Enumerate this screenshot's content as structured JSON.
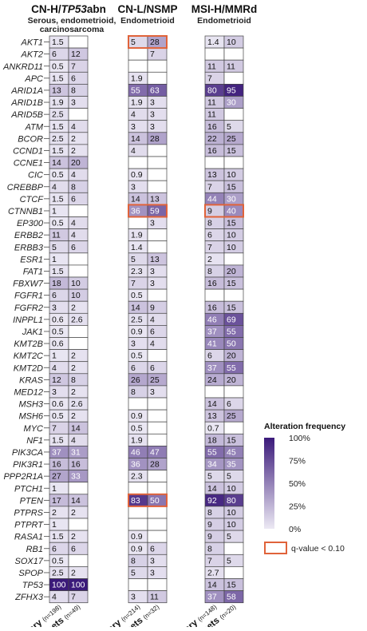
{
  "chart_data": {
    "type": "heatmap",
    "genes": [
      "AKT1",
      "AKT2",
      "ANKRD11",
      "APC",
      "ARID1A",
      "ARID1B",
      "ARID5B",
      "ATM",
      "BCOR",
      "CCND1",
      "CCNE1",
      "CIC",
      "CREBBP",
      "CTCF",
      "CTNNB1",
      "EP300",
      "ERBB2",
      "ERBB3",
      "ESR1",
      "FAT1",
      "FBXW7",
      "FGFR1",
      "FGFR2",
      "INPPL1",
      "JAK1",
      "KMT2B",
      "KMT2C",
      "KMT2D",
      "KRAS",
      "MED12",
      "MSH3",
      "MSH6",
      "MYC",
      "NF1",
      "PIK3CA",
      "PIK3R1",
      "PPP2R1A",
      "PTCH1",
      "PTEN",
      "PTPRS",
      "PTPRT",
      "RASA1",
      "RB1",
      "SOX17",
      "SPOP",
      "TP53",
      "ZFHX3"
    ],
    "italic_tp53_title": true,
    "groups": [
      {
        "title_prefix": "CN-H/",
        "title_italic": "TP53",
        "title_suffix": "abn",
        "subtitle": "Serous, endometrioid, carcinosarcoma",
        "columns": [
          {
            "label": "Primary",
            "n": "(n=198)"
          },
          {
            "label": "Distant mets",
            "n": "(n=49)"
          }
        ],
        "values": [
          [
            "1.5",
            ""
          ],
          [
            "6",
            "12"
          ],
          [
            "0.5",
            "7"
          ],
          [
            "1.5",
            "6"
          ],
          [
            "13",
            "8"
          ],
          [
            "1.9",
            "3"
          ],
          [
            "2.5",
            ""
          ],
          [
            "1.5",
            "4"
          ],
          [
            "2.5",
            "2"
          ],
          [
            "1.5",
            "2"
          ],
          [
            "14",
            "20"
          ],
          [
            "0.5",
            "4"
          ],
          [
            "4",
            "8"
          ],
          [
            "1.5",
            "6"
          ],
          [
            "1",
            ""
          ],
          [
            "0.5",
            "4"
          ],
          [
            "11",
            "4"
          ],
          [
            "5",
            "6"
          ],
          [
            "1",
            ""
          ],
          [
            "1.5",
            ""
          ],
          [
            "18",
            "10"
          ],
          [
            "6",
            "10"
          ],
          [
            "3",
            "2"
          ],
          [
            "0.6",
            "2.6"
          ],
          [
            "0.5",
            ""
          ],
          [
            "0.6",
            ""
          ],
          [
            "1",
            "2"
          ],
          [
            "4",
            "2"
          ],
          [
            "12",
            "8"
          ],
          [
            "3",
            "2"
          ],
          [
            "0.6",
            "2.6"
          ],
          [
            "0.5",
            "2"
          ],
          [
            "7",
            "14"
          ],
          [
            "1.5",
            "4"
          ],
          [
            "37",
            "31"
          ],
          [
            "16",
            "16"
          ],
          [
            "27",
            "33"
          ],
          [
            "1",
            ""
          ],
          [
            "17",
            "14"
          ],
          [
            "2",
            "2"
          ],
          [
            "1",
            ""
          ],
          [
            "1.5",
            "2"
          ],
          [
            "6",
            "6"
          ],
          [
            "0.5",
            ""
          ],
          [
            "2.5",
            "2"
          ],
          [
            "100",
            "100"
          ],
          [
            "4",
            "7"
          ]
        ],
        "highlight": []
      },
      {
        "title_prefix": "CN-L/NSMP",
        "title_italic": "",
        "title_suffix": "",
        "subtitle": "Endometrioid",
        "columns": [
          {
            "label": "Primary",
            "n": "(n=214)"
          },
          {
            "label": "Distant mets",
            "n": "(n=32)"
          }
        ],
        "values": [
          [
            "5",
            "28"
          ],
          [
            "",
            "7"
          ],
          [
            "",
            ""
          ],
          [
            "1.9",
            ""
          ],
          [
            "55",
            "63"
          ],
          [
            "1.9",
            "3"
          ],
          [
            "4",
            "3"
          ],
          [
            "3",
            "3"
          ],
          [
            "14",
            "28"
          ],
          [
            "4",
            ""
          ],
          [
            "",
            ""
          ],
          [
            "0.9",
            ""
          ],
          [
            "3",
            ""
          ],
          [
            "14",
            "13"
          ],
          [
            "36",
            "59"
          ],
          [
            "",
            "3"
          ],
          [
            "1.9",
            ""
          ],
          [
            "1.4",
            ""
          ],
          [
            "5",
            "13"
          ],
          [
            "2.3",
            "3"
          ],
          [
            "7",
            "3"
          ],
          [
            "0.5",
            ""
          ],
          [
            "14",
            "9"
          ],
          [
            "2.5",
            "4"
          ],
          [
            "0.9",
            "6"
          ],
          [
            "3",
            "4"
          ],
          [
            "0.5",
            ""
          ],
          [
            "6",
            "6"
          ],
          [
            "26",
            "25"
          ],
          [
            "8",
            "3"
          ],
          [
            "",
            ""
          ],
          [
            "0.9",
            ""
          ],
          [
            "0.5",
            ""
          ],
          [
            "1.9",
            ""
          ],
          [
            "46",
            "47"
          ],
          [
            "36",
            "28"
          ],
          [
            "2.3",
            ""
          ],
          [
            "",
            ""
          ],
          [
            "83",
            "50"
          ],
          [
            "",
            ""
          ],
          [
            "",
            ""
          ],
          [
            "0.9",
            ""
          ],
          [
            "0.9",
            "6"
          ],
          [
            "8",
            "3"
          ],
          [
            "5",
            "3"
          ],
          [
            "",
            ""
          ],
          [
            "3",
            "11"
          ]
        ],
        "highlight": [
          "AKT1",
          "CTNNB1",
          "PTEN"
        ]
      },
      {
        "title_prefix": "MSI-H/MMRd",
        "title_italic": "",
        "title_suffix": "",
        "subtitle": "Endometrioid",
        "columns": [
          {
            "label": "Primary",
            "n": "(n=148)"
          },
          {
            "label": "Distant mets",
            "n": "(n=20)"
          }
        ],
        "values": [
          [
            "1.4",
            "10"
          ],
          [
            "",
            ""
          ],
          [
            "11",
            "11"
          ],
          [
            "7",
            ""
          ],
          [
            "80",
            "95"
          ],
          [
            "11",
            "30"
          ],
          [
            "11",
            ""
          ],
          [
            "16",
            "5"
          ],
          [
            "22",
            "25"
          ],
          [
            "16",
            "15"
          ],
          [
            "",
            ""
          ],
          [
            "13",
            "10"
          ],
          [
            "7",
            "15"
          ],
          [
            "44",
            "30"
          ],
          [
            "9",
            "40"
          ],
          [
            "8",
            "15"
          ],
          [
            "6",
            "10"
          ],
          [
            "7",
            "10"
          ],
          [
            "2",
            ""
          ],
          [
            "8",
            "20"
          ],
          [
            "16",
            "15"
          ],
          [
            "",
            ""
          ],
          [
            "16",
            "15"
          ],
          [
            "46",
            "69"
          ],
          [
            "37",
            "55"
          ],
          [
            "41",
            "50"
          ],
          [
            "6",
            "20"
          ],
          [
            "37",
            "55"
          ],
          [
            "24",
            "20"
          ],
          [
            "",
            ""
          ],
          [
            "14",
            "6"
          ],
          [
            "13",
            "25"
          ],
          [
            "0.7",
            ""
          ],
          [
            "18",
            "15"
          ],
          [
            "55",
            "45"
          ],
          [
            "34",
            "35"
          ],
          [
            "5",
            "5"
          ],
          [
            "14",
            "10"
          ],
          [
            "92",
            "80"
          ],
          [
            "8",
            "10"
          ],
          [
            "9",
            "10"
          ],
          [
            "9",
            "5"
          ],
          [
            "8",
            ""
          ],
          [
            "7",
            "5"
          ],
          [
            "2.7",
            ""
          ],
          [
            "14",
            "15"
          ],
          [
            "37",
            "58"
          ]
        ],
        "highlight": [
          "CTNNB1"
        ]
      }
    ],
    "legend": {
      "title": "Alteration frequency",
      "ticks": [
        "100%",
        "75%",
        "50%",
        "25%",
        "0%"
      ],
      "scale_min": 0,
      "scale_max": 100,
      "color_low": "#ece9f4",
      "color_high": "#3b1a7a",
      "highlight_label": "q-value < 0.10",
      "highlight_color": "#e0633a"
    }
  }
}
